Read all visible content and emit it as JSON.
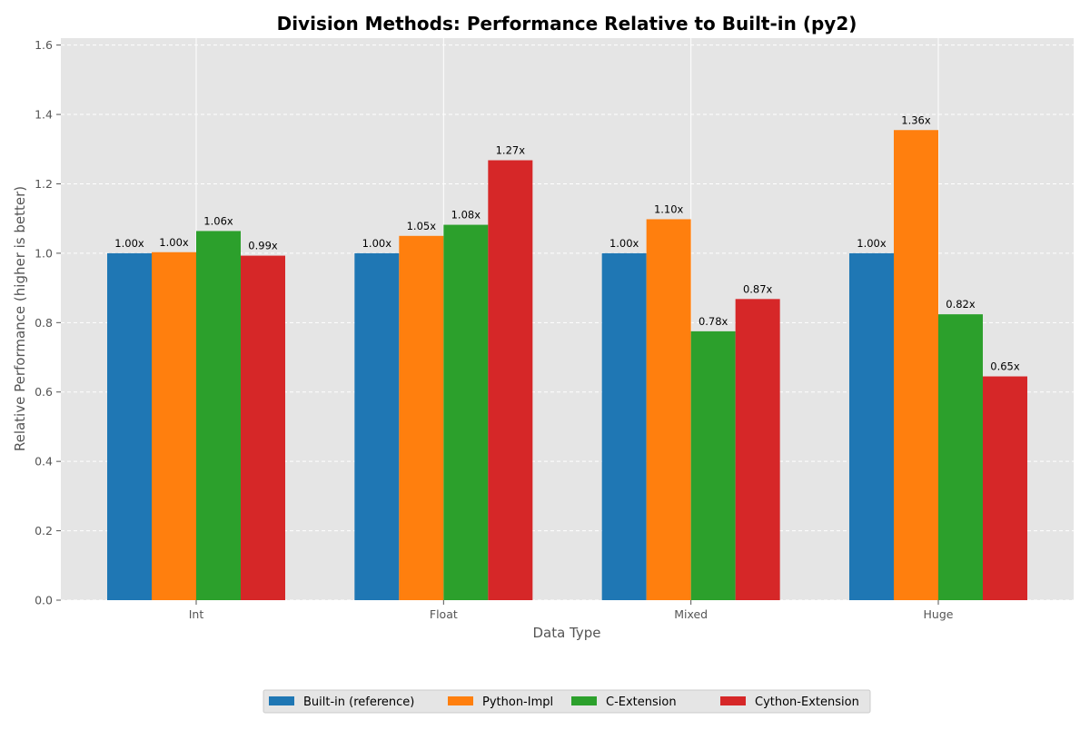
{
  "chart_data": {
    "type": "bar",
    "title": "Division Methods: Performance Relative to Built-in (py2)",
    "xlabel": "Data Type",
    "ylabel": "Relative Performance (higher is better)",
    "categories": [
      "Int",
      "Float",
      "Mixed",
      "Huge"
    ],
    "ylim": [
      0,
      1.62
    ],
    "yticks": [
      0.0,
      0.2,
      0.4,
      0.6,
      0.8,
      1.0,
      1.2,
      1.4,
      1.6
    ],
    "ytick_labels": [
      "0.0",
      "0.2",
      "0.4",
      "0.6",
      "0.8",
      "1.0",
      "1.2",
      "1.4",
      "1.6"
    ],
    "grid": true,
    "legend_position": "bottom-center",
    "series": [
      {
        "name": "Built-in (reference)",
        "color": "#1f77b4",
        "values": [
          1.0,
          1.0,
          1.0,
          1.0
        ],
        "labels": [
          "1.00x",
          "1.00x",
          "1.00x",
          "1.00x"
        ]
      },
      {
        "name": "Python-Impl",
        "color": "#ff7f0e",
        "values": [
          1.003,
          1.05,
          1.098,
          1.355
        ],
        "labels": [
          "1.00x",
          "1.05x",
          "1.10x",
          "1.36x"
        ]
      },
      {
        "name": "C-Extension",
        "color": "#2ca02c",
        "values": [
          1.064,
          1.082,
          0.775,
          0.824
        ],
        "labels": [
          "1.06x",
          "1.08x",
          "0.78x",
          "0.82x"
        ]
      },
      {
        "name": "Cython-Extension",
        "color": "#d62728",
        "values": [
          0.993,
          1.268,
          0.868,
          0.645
        ],
        "labels": [
          "0.99x",
          "1.27x",
          "0.87x",
          "0.65x"
        ]
      }
    ]
  }
}
